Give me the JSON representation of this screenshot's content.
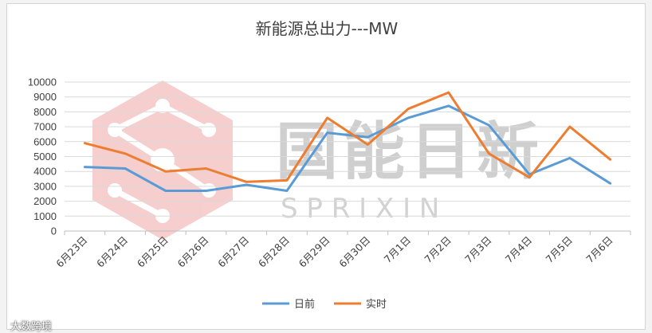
{
  "chart_data": {
    "type": "line",
    "title": "新能源总出力---MW",
    "xlabel": "",
    "ylabel": "",
    "ylim": [
      0,
      10000
    ],
    "yticks": [
      0,
      1000,
      2000,
      3000,
      4000,
      5000,
      6000,
      7000,
      8000,
      9000,
      10000
    ],
    "categories": [
      "6月23日",
      "6月24日",
      "6月25日",
      "6月26日",
      "6月27日",
      "6月28日",
      "6月29日",
      "6月30日",
      "7月1日",
      "7月2日",
      "7月3日",
      "7月4日",
      "7月5日",
      "7月6日"
    ],
    "series": [
      {
        "name": "日前",
        "color": "#5b9bd5",
        "values": [
          4300,
          4200,
          2700,
          2700,
          3100,
          2700,
          6600,
          6300,
          7600,
          8400,
          7100,
          3800,
          4900,
          3200
        ]
      },
      {
        "name": "实时",
        "color": "#ed7d31",
        "values": [
          5900,
          5200,
          4000,
          4200,
          3300,
          3400,
          7600,
          5800,
          8200,
          9300,
          5200,
          3600,
          7000,
          4800
        ]
      }
    ],
    "grid": true,
    "legend": "bottom"
  },
  "watermark": {
    "text": "国能日新",
    "subtext": "SPRIXIN",
    "logo_color": "#e86a6a"
  },
  "corner_mark": "大数跨境"
}
